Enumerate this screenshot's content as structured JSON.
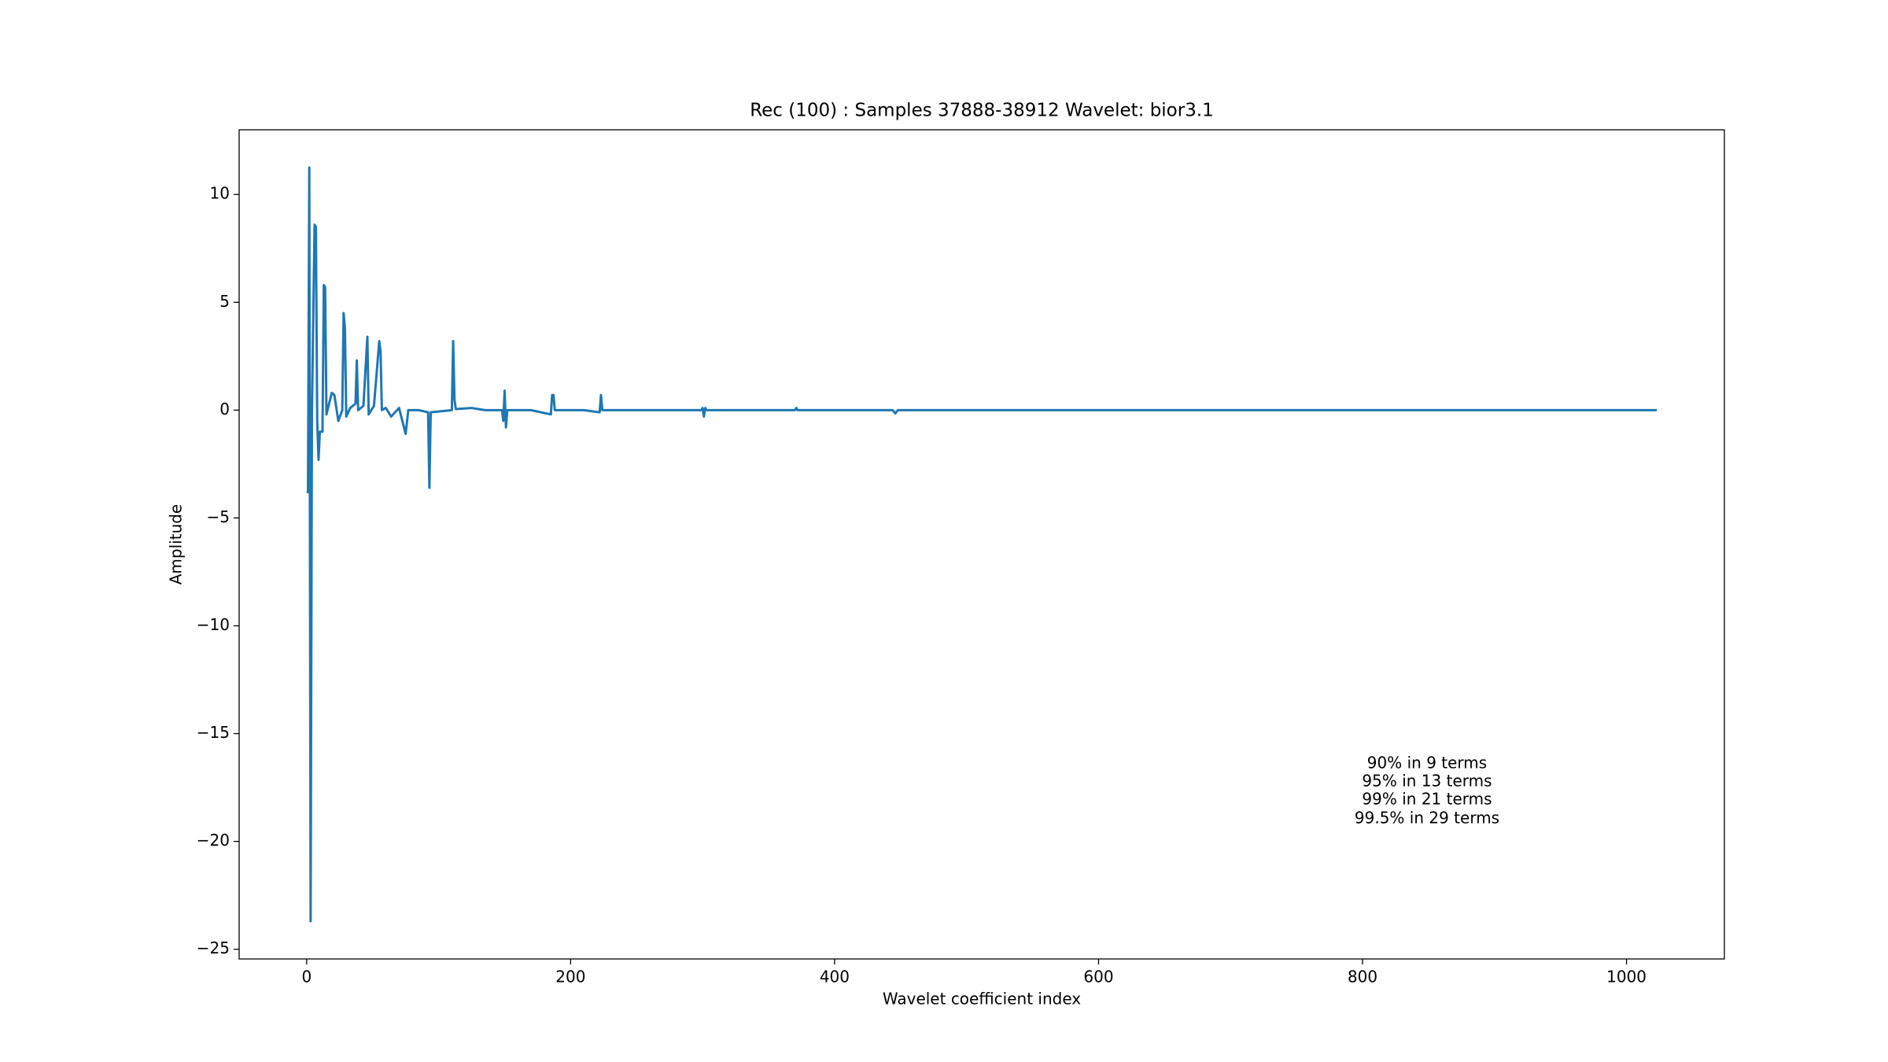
{
  "chart_data": {
    "type": "line",
    "title": "Rec (100) : Samples 37888-38912 Wavelet: bior3.1",
    "x_label": "Wavelet coefficient index",
    "y_label": "Amplitude",
    "annotations": [
      "90% in 9 terms",
      "95% in 13 terms",
      "99% in 21 terms",
      "99.5% in 29 terms"
    ],
    "x": [
      0,
      1,
      2,
      3,
      4,
      6,
      7,
      8,
      9,
      10,
      12,
      13,
      14,
      15,
      17,
      19,
      21,
      24,
      27,
      28,
      29,
      30,
      33,
      37,
      38,
      39,
      43,
      46,
      47,
      51,
      55,
      56,
      57,
      60,
      64,
      70,
      75,
      77,
      85,
      92,
      93,
      94,
      110,
      111,
      112,
      113,
      125,
      135,
      148,
      149,
      150,
      151,
      152,
      170,
      185,
      186,
      187,
      188,
      210,
      222,
      223,
      224,
      250,
      299,
      300,
      301,
      302,
      303,
      370,
      371,
      372,
      444,
      446,
      448,
      600,
      1023
    ],
    "series": [
      {
        "color": "#1f77b4",
        "values": [
          -3.8,
          -3.8,
          11.25,
          -23.7,
          0,
          8.6,
          8.5,
          -0.5,
          -2.3,
          -1.0,
          -1.0,
          5.8,
          5.7,
          -0.2,
          0.3,
          0.8,
          0.7,
          -0.5,
          0,
          4.5,
          3.8,
          -0.3,
          0.1,
          0.3,
          2.3,
          0,
          0.2,
          3.4,
          -0.2,
          0.2,
          3.2,
          2.7,
          0,
          0.1,
          -0.3,
          0.1,
          -1.1,
          0,
          0,
          -0.1,
          -3.6,
          -0.1,
          0,
          3.2,
          0.5,
          0.05,
          0.1,
          0,
          0,
          -0.5,
          0.9,
          -0.8,
          0,
          0,
          -0.2,
          0.7,
          0.7,
          0,
          0,
          -0.1,
          0.7,
          0,
          0,
          0,
          0.1,
          -0.3,
          0.1,
          0,
          0,
          0.1,
          0,
          0,
          -0.15,
          0,
          0,
          0
        ]
      }
    ],
    "xlim": [
      -51.15,
      1074.15
    ],
    "ylim": [
      -25.45,
      13.0
    ],
    "xticks": [
      0,
      200,
      400,
      600,
      800,
      1000
    ],
    "yticks": [
      {
        "value": -25,
        "label": "−25"
      },
      {
        "value": -20,
        "label": "−20"
      },
      {
        "value": -15,
        "label": "−15"
      },
      {
        "value": -10,
        "label": "−10"
      },
      {
        "value": -5,
        "label": "−5"
      },
      0,
      5,
      10
    ]
  }
}
